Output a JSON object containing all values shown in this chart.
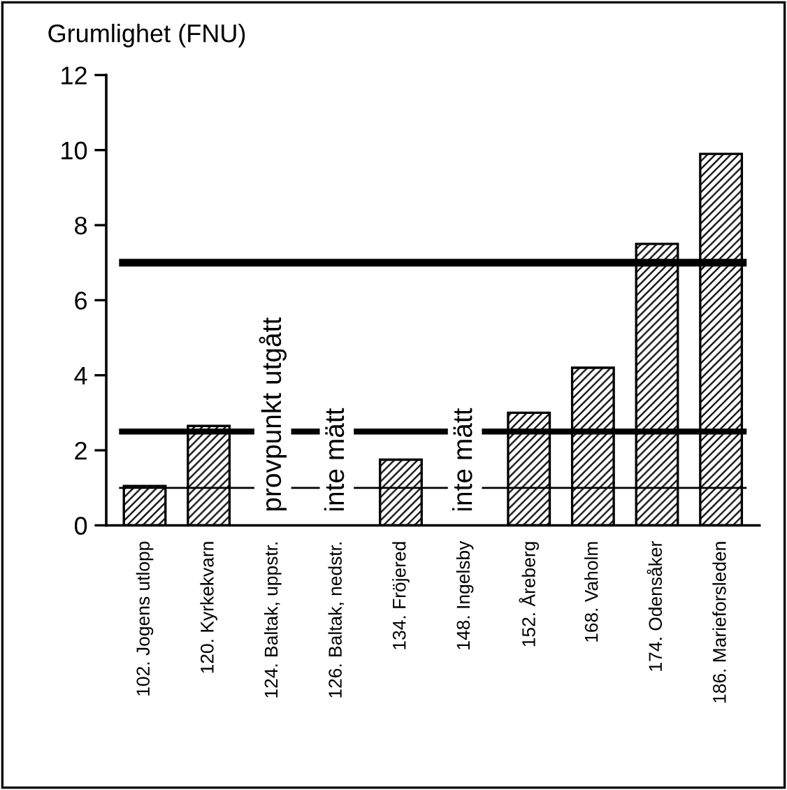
{
  "chart_data": {
    "type": "bar",
    "ylabel": "Grumlighet (FNU)",
    "categories": [
      "102. Jogens utlopp",
      "120. Kyrkekvarn",
      "124. Baltak, uppstr.",
      "126. Baltak, nedstr.",
      "134. Fröjered",
      "148. Ingelsby",
      "152. Åreberg",
      "168. Vaholm",
      "174. Odensåker",
      "186. Marieforsleden"
    ],
    "values": [
      1.05,
      2.65,
      null,
      null,
      1.75,
      null,
      3.0,
      4.2,
      7.5,
      9.9
    ],
    "color": "#000000",
    "ylim": [
      0,
      12
    ],
    "yticks": [
      0,
      2,
      4,
      6,
      8,
      10,
      12
    ],
    "grid": false,
    "legend": false,
    "ref_lines": [
      {
        "axis": "y",
        "value": 7,
        "color": "#000000",
        "line_style": "solid"
      },
      {
        "axis": "y",
        "value": 2.5,
        "color": "#000000",
        "line_style": "solid"
      },
      {
        "axis": "y",
        "value": 1,
        "color": "#000000",
        "line_style": "solid"
      }
    ],
    "annotations": [
      "provpunkt utgått",
      "inte mätt",
      "inte mätt"
    ]
  }
}
